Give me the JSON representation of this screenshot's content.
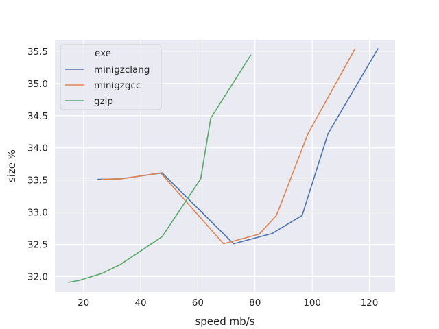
{
  "chart_data": {
    "type": "line",
    "title": "",
    "xlabel": "speed mb/s",
    "ylabel": "size %",
    "xlim": [
      10,
      129
    ],
    "ylim": [
      31.76,
      35.68
    ],
    "x_ticks": [
      20,
      40,
      60,
      80,
      100,
      120
    ],
    "y_ticks": [
      32.0,
      32.5,
      33.0,
      33.5,
      34.0,
      34.5,
      35.0,
      35.5
    ],
    "x_tick_labels": [
      "20",
      "40",
      "60",
      "80",
      "100",
      "120"
    ],
    "y_tick_labels": [
      "32.0",
      "32.5",
      "33.0",
      "33.5",
      "34.0",
      "34.5",
      "35.0",
      "35.5"
    ],
    "grid": true,
    "background": "#eaeaf2",
    "legend": {
      "title": "exe",
      "placement": "top-left"
    },
    "series": [
      {
        "name": "minigzclang",
        "color": "#4c72b0",
        "points": [
          [
            24.8,
            33.51
          ],
          [
            33.2,
            33.52
          ],
          [
            47.5,
            33.61
          ],
          [
            72.5,
            32.51
          ],
          [
            86.0,
            32.67
          ],
          [
            96.5,
            32.95
          ],
          [
            105.5,
            34.22
          ],
          [
            123.0,
            35.54
          ]
        ]
      },
      {
        "name": "minigzgcc",
        "color": "#dd8452",
        "points": [
          [
            26.5,
            33.51
          ],
          [
            33.2,
            33.52
          ],
          [
            47.0,
            33.61
          ],
          [
            69.0,
            32.51
          ],
          [
            81.5,
            32.66
          ],
          [
            87.5,
            32.95
          ],
          [
            98.5,
            34.22
          ],
          [
            115.0,
            35.54
          ]
        ]
      },
      {
        "name": "gzip",
        "color": "#55a868",
        "points": [
          [
            14.8,
            31.91
          ],
          [
            18.5,
            31.94
          ],
          [
            26.5,
            32.05
          ],
          [
            33.0,
            32.19
          ],
          [
            47.5,
            32.62
          ],
          [
            61.0,
            33.52
          ],
          [
            64.5,
            34.46
          ],
          [
            78.5,
            35.44
          ]
        ]
      }
    ]
  }
}
